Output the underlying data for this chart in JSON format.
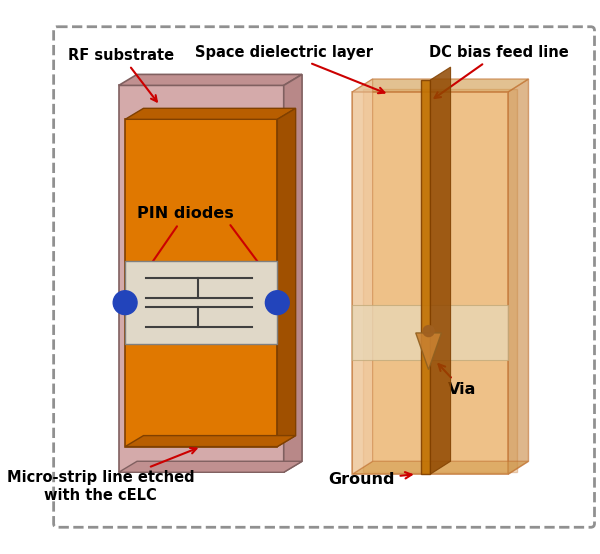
{
  "fig_width": 6.0,
  "fig_height": 5.54,
  "dpi": 100,
  "labels": {
    "rf_substrate": "RF substrate",
    "space_dielectric": "Space dielectric layer",
    "dc_bias": "DC bias feed line",
    "pin_diodes": "PIN diodes",
    "micro_strip": "Micro-strip line etched\nwith the cELC",
    "ground": "Ground",
    "via": "Via"
  },
  "colors": {
    "pink_front": "#d4aaaa",
    "pink_top": "#c09090",
    "pink_side": "#b88888",
    "orange_front": "#e07800",
    "orange_top": "#b85e00",
    "orange_side": "#a05000",
    "celc_bg": "#e0d8c8",
    "blue_diode": "#2244bb",
    "arrow_color": "#cc0000",
    "border_color": "#909090",
    "trans_front": "#e8a858",
    "trans_side": "#c88840",
    "trans_top": "#d09848",
    "ground_rect": "#ddd0b8",
    "dc_line": "#c07000",
    "dc_side": "#904800",
    "via_color": "#c88030",
    "via_circle": "#a06020"
  }
}
